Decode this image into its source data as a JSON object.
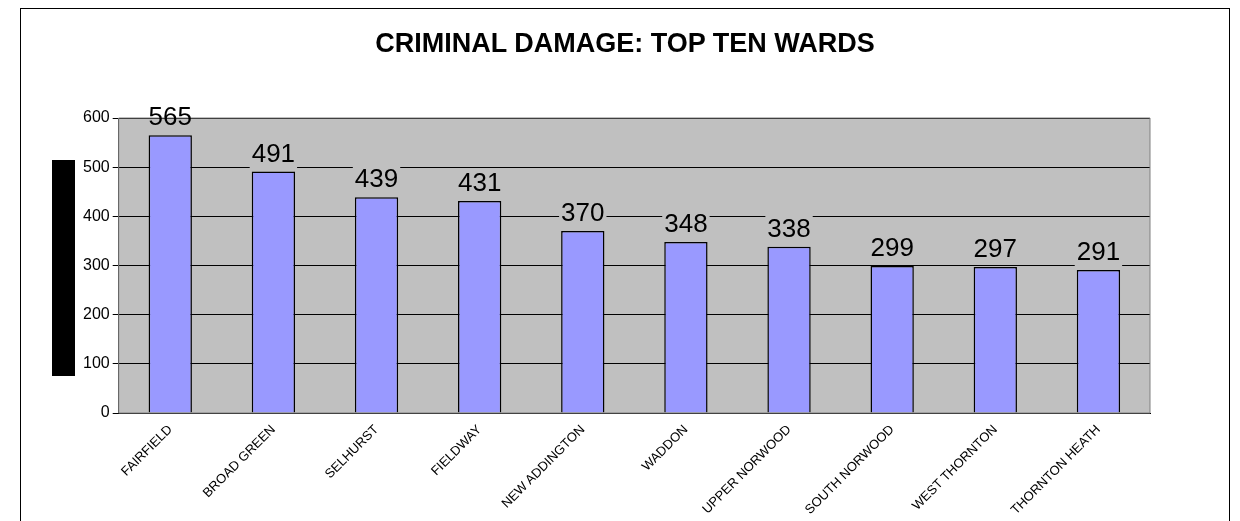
{
  "chart_data": {
    "type": "bar",
    "title": "CRIMINAL DAMAGE: TOP TEN WARDS",
    "categories": [
      "FAIRFIELD",
      "BROAD GREEN",
      "SELHURST",
      "FIELDWAY",
      "NEW ADDINGTON",
      "WADDON",
      "UPPER NORWOOD",
      "SOUTH NORWOOD",
      "WEST THORNTON",
      "THORNTON HEATH"
    ],
    "values": [
      565,
      491,
      439,
      431,
      370,
      348,
      338,
      299,
      297,
      291
    ],
    "color": "#9999ff",
    "ylim": [
      0,
      600
    ],
    "yticks": [
      0,
      100,
      200,
      300,
      400,
      500,
      600
    ],
    "grid": "y",
    "legend": false,
    "data_labels": true
  }
}
